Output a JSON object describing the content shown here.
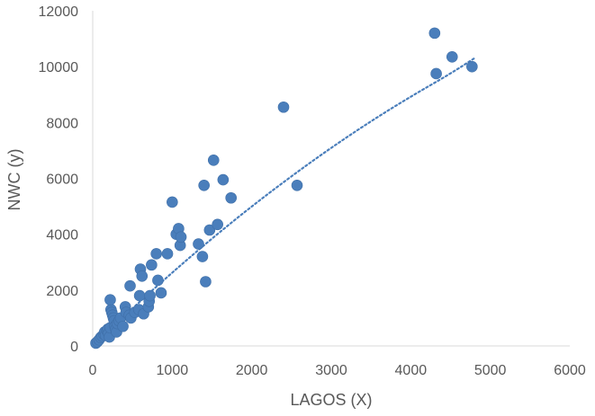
{
  "chart_data": {
    "type": "scatter",
    "title": "",
    "xlabel": "LAGOS (X)",
    "ylabel": "NWC (y)",
    "xlim": [
      0,
      6000
    ],
    "ylim": [
      0,
      12000
    ],
    "x_ticks": [
      "0",
      "1000",
      "2000",
      "3000",
      "4000",
      "5000",
      "6000"
    ],
    "y_ticks": [
      "0",
      "2000",
      "4000",
      "6000",
      "8000",
      "10000",
      "12000"
    ],
    "grid": false,
    "legend": "none",
    "marker_color": "#4a7ebb",
    "trendline": {
      "type": "polynomial",
      "style": "dotted",
      "color": "#4a7ebb",
      "points": [
        [
          0,
          0
        ],
        [
          500,
          1350
        ],
        [
          1000,
          2630
        ],
        [
          1500,
          3850
        ],
        [
          2000,
          5000
        ],
        [
          2500,
          6080
        ],
        [
          3000,
          7100
        ],
        [
          3500,
          8050
        ],
        [
          4000,
          8930
        ],
        [
          4500,
          9750
        ],
        [
          4800,
          10300
        ]
      ]
    },
    "points": [
      [
        40,
        100
      ],
      [
        60,
        150
      ],
      [
        80,
        220
      ],
      [
        100,
        300
      ],
      [
        120,
        350
      ],
      [
        140,
        420
      ],
      [
        150,
        500
      ],
      [
        160,
        380
      ],
      [
        180,
        550
      ],
      [
        190,
        600
      ],
      [
        200,
        450
      ],
      [
        210,
        320
      ],
      [
        220,
        650
      ],
      [
        230,
        1300
      ],
      [
        240,
        1200
      ],
      [
        250,
        1100
      ],
      [
        260,
        1000
      ],
      [
        270,
        900
      ],
      [
        280,
        700
      ],
      [
        290,
        600
      ],
      [
        300,
        500
      ],
      [
        310,
        800
      ],
      [
        330,
        900
      ],
      [
        350,
        1000
      ],
      [
        380,
        700
      ],
      [
        410,
        1400
      ],
      [
        420,
        1200
      ],
      [
        460,
        1100
      ],
      [
        480,
        1000
      ],
      [
        470,
        2150
      ],
      [
        530,
        1200
      ],
      [
        580,
        1300
      ],
      [
        590,
        1800
      ],
      [
        600,
        2750
      ],
      [
        620,
        2500
      ],
      [
        640,
        1150
      ],
      [
        700,
        1400
      ],
      [
        710,
        1600
      ],
      [
        720,
        1800
      ],
      [
        740,
        2900
      ],
      [
        800,
        3300
      ],
      [
        820,
        2350
      ],
      [
        860,
        1900
      ],
      [
        940,
        3300
      ],
      [
        1000,
        5150
      ],
      [
        1050,
        4000
      ],
      [
        1080,
        4200
      ],
      [
        1100,
        3600
      ],
      [
        1110,
        3900
      ],
      [
        1330,
        3650
      ],
      [
        1380,
        3200
      ],
      [
        1400,
        5750
      ],
      [
        1420,
        2300
      ],
      [
        1470,
        4150
      ],
      [
        1520,
        6650
      ],
      [
        1570,
        4350
      ],
      [
        1640,
        5950
      ],
      [
        1740,
        5300
      ],
      [
        2400,
        8550
      ],
      [
        2570,
        5750
      ],
      [
        4300,
        11200
      ],
      [
        4320,
        9750
      ],
      [
        4520,
        10350
      ],
      [
        4770,
        10000
      ],
      [
        220,
        1650
      ]
    ]
  }
}
